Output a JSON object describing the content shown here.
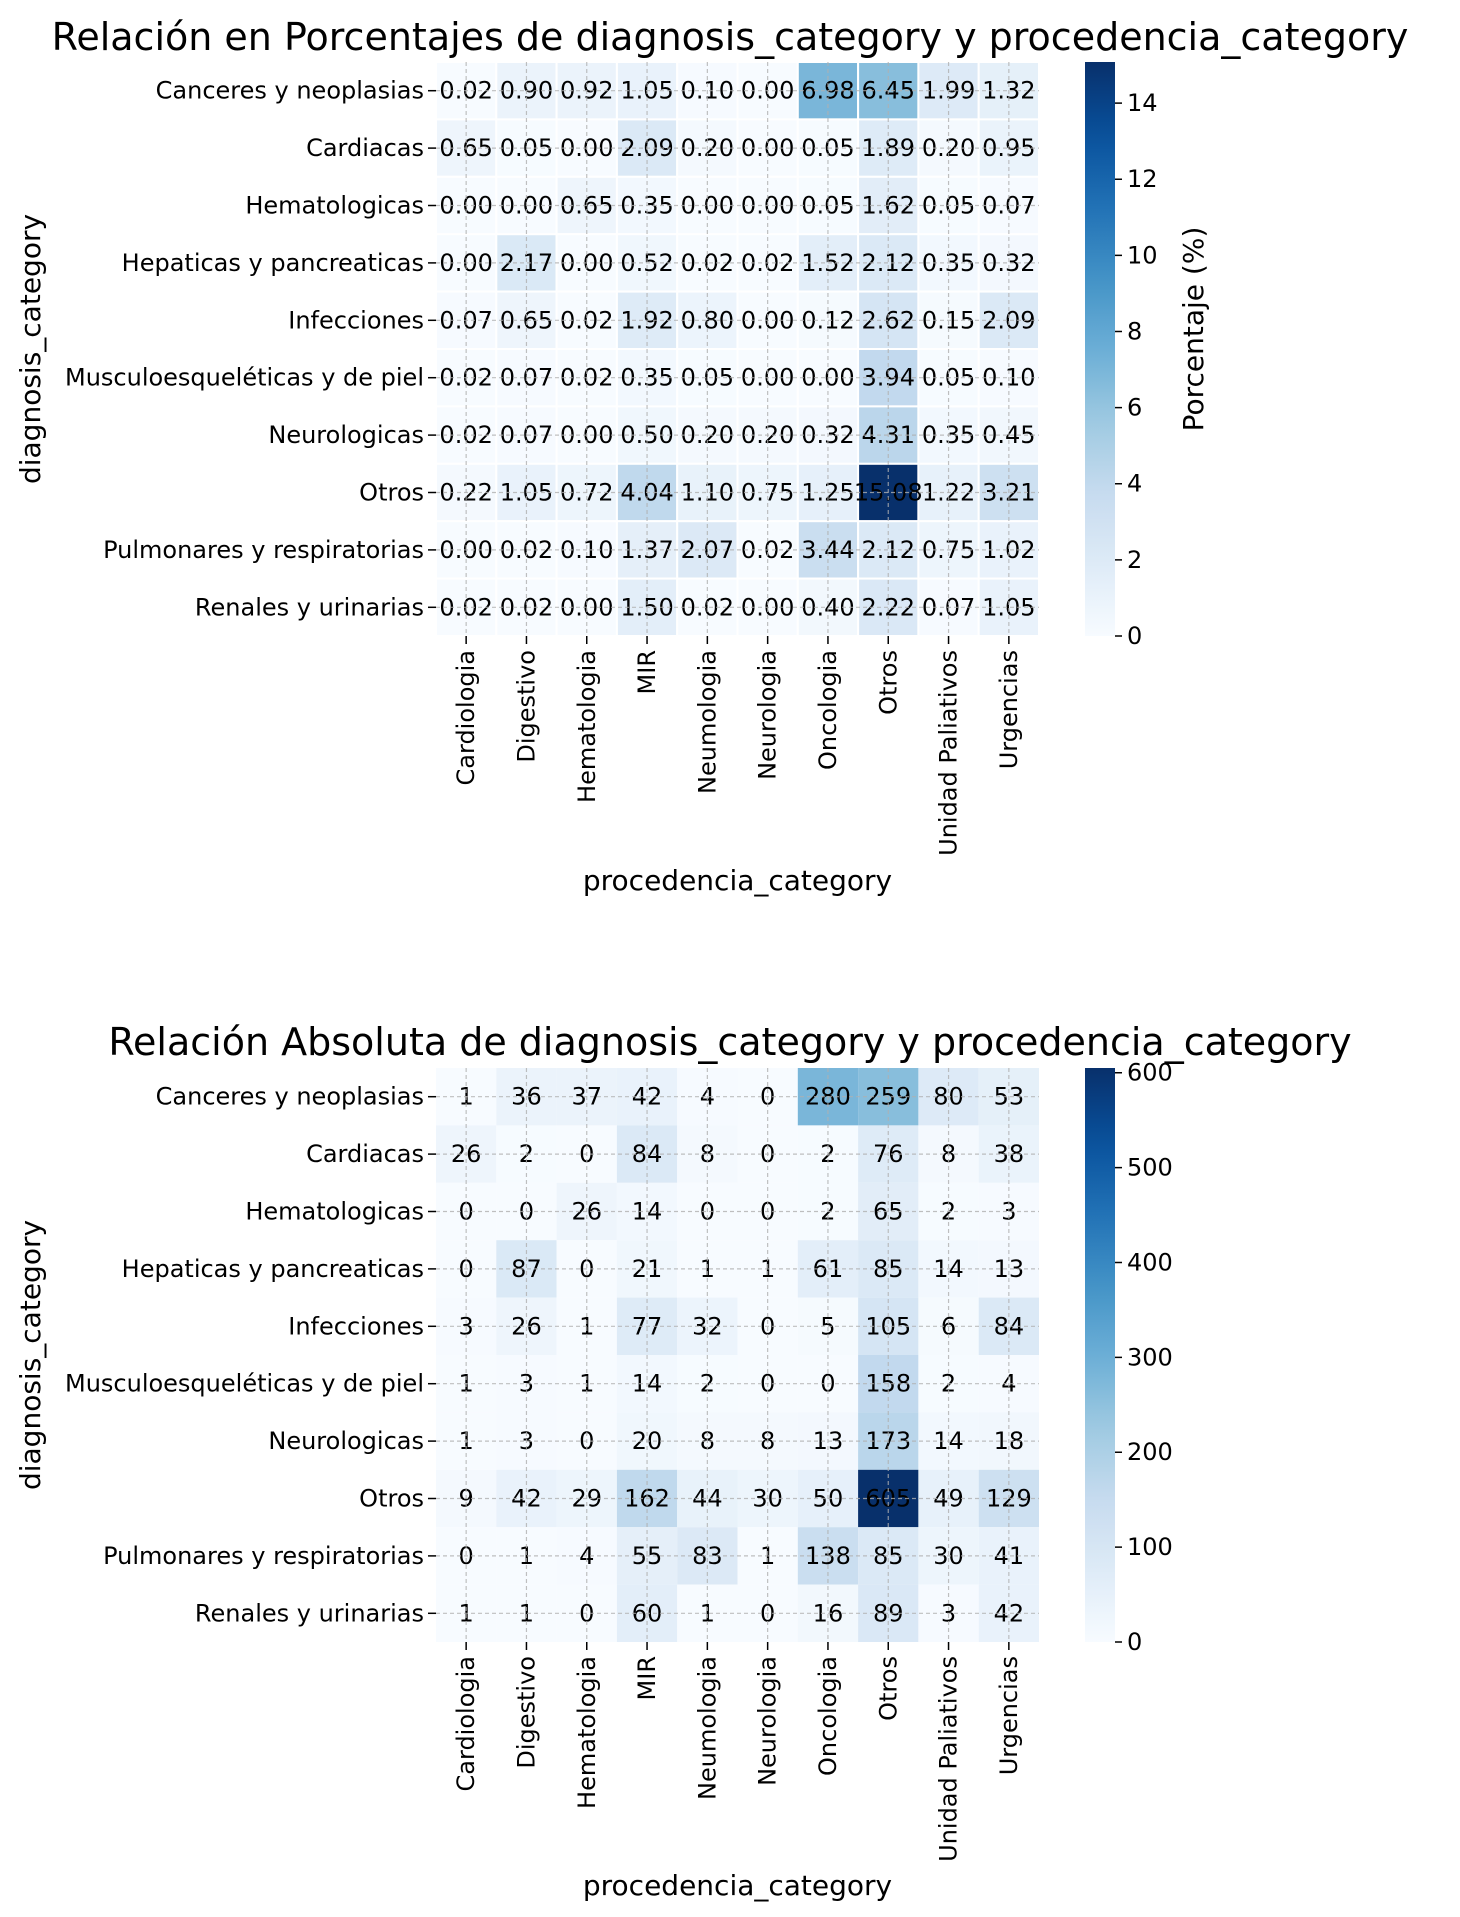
{
  "chart_data": [
    {
      "type": "heatmap",
      "title": "Relación en Porcentajes de diagnosis_category y procedencia_category",
      "xlabel": "procedencia_category",
      "ylabel": "diagnosis_category",
      "x": [
        "Cardiologia",
        "Digestivo",
        "Hematologia",
        "MIR",
        "Neumologia",
        "Neurologia",
        "Oncologia",
        "Otros",
        "Unidad Paliativos",
        "Urgencias"
      ],
      "y": [
        "Canceres y neoplasias",
        "Cardiacas",
        "Hematologicas",
        "Hepaticas y pancreaticas",
        "Infecciones",
        "Musculoesqueléticas y de piel",
        "Neurologicas",
        "Otros",
        "Pulmonares y respiratorias",
        "Renales y urinarias"
      ],
      "values": [
        [
          0.02,
          0.9,
          0.92,
          1.05,
          0.1,
          0.0,
          6.98,
          6.45,
          1.99,
          1.32
        ],
        [
          0.65,
          0.05,
          0.0,
          2.09,
          0.2,
          0.0,
          0.05,
          1.89,
          0.2,
          0.95
        ],
        [
          0.0,
          0.0,
          0.65,
          0.35,
          0.0,
          0.0,
          0.05,
          1.62,
          0.05,
          0.07
        ],
        [
          0.0,
          2.17,
          0.0,
          0.52,
          0.02,
          0.02,
          1.52,
          2.12,
          0.35,
          0.32
        ],
        [
          0.07,
          0.65,
          0.02,
          1.92,
          0.8,
          0.0,
          0.12,
          2.62,
          0.15,
          2.09
        ],
        [
          0.02,
          0.07,
          0.02,
          0.35,
          0.05,
          0.0,
          0.0,
          3.94,
          0.05,
          0.1
        ],
        [
          0.02,
          0.07,
          0.0,
          0.5,
          0.2,
          0.2,
          0.32,
          4.31,
          0.35,
          0.45
        ],
        [
          0.22,
          1.05,
          0.72,
          4.04,
          1.1,
          0.75,
          1.25,
          15.08,
          1.22,
          3.21
        ],
        [
          0.0,
          0.02,
          0.1,
          1.37,
          2.07,
          0.02,
          3.44,
          2.12,
          0.75,
          1.02
        ],
        [
          0.02,
          0.02,
          0.0,
          1.5,
          0.02,
          0.0,
          0.4,
          2.22,
          0.07,
          1.05
        ]
      ],
      "decimals": 2,
      "vmin": 0,
      "vmax": 15.08,
      "colormap": "Blues",
      "cell_border": "#ffffff",
      "grid": true,
      "colorbar": {
        "label": "Porcentaje (%)",
        "ticks": [
          0,
          2,
          4,
          6,
          8,
          10,
          12,
          14
        ]
      }
    },
    {
      "type": "heatmap",
      "title": "Relación Absoluta de diagnosis_category y procedencia_category",
      "xlabel": "procedencia_category",
      "ylabel": "diagnosis_category",
      "x": [
        "Cardiologia",
        "Digestivo",
        "Hematologia",
        "MIR",
        "Neumologia",
        "Neurologia",
        "Oncologia",
        "Otros",
        "Unidad Paliativos",
        "Urgencias"
      ],
      "y": [
        "Canceres y neoplasias",
        "Cardiacas",
        "Hematologicas",
        "Hepaticas y pancreaticas",
        "Infecciones",
        "Musculoesqueléticas y de piel",
        "Neurologicas",
        "Otros",
        "Pulmonares y respiratorias",
        "Renales y urinarias"
      ],
      "values": [
        [
          1,
          36,
          37,
          42,
          4,
          0,
          280,
          259,
          80,
          53
        ],
        [
          26,
          2,
          0,
          84,
          8,
          0,
          2,
          76,
          8,
          38
        ],
        [
          0,
          0,
          26,
          14,
          0,
          0,
          2,
          65,
          2,
          3
        ],
        [
          0,
          87,
          0,
          21,
          1,
          1,
          61,
          85,
          14,
          13
        ],
        [
          3,
          26,
          1,
          77,
          32,
          0,
          5,
          105,
          6,
          84
        ],
        [
          1,
          3,
          1,
          14,
          2,
          0,
          0,
          158,
          2,
          4
        ],
        [
          1,
          3,
          0,
          20,
          8,
          8,
          13,
          173,
          14,
          18
        ],
        [
          9,
          42,
          29,
          162,
          44,
          30,
          50,
          605,
          49,
          129
        ],
        [
          0,
          1,
          4,
          55,
          83,
          1,
          138,
          85,
          30,
          41
        ],
        [
          1,
          1,
          0,
          60,
          1,
          0,
          16,
          89,
          3,
          42
        ]
      ],
      "decimals": 0,
      "vmin": 0,
      "vmax": 605,
      "colormap": "Blues",
      "cell_border": "none",
      "grid": true,
      "colorbar": {
        "label": "",
        "ticks": [
          0,
          100,
          200,
          300,
          400,
          500,
          600
        ]
      }
    }
  ]
}
